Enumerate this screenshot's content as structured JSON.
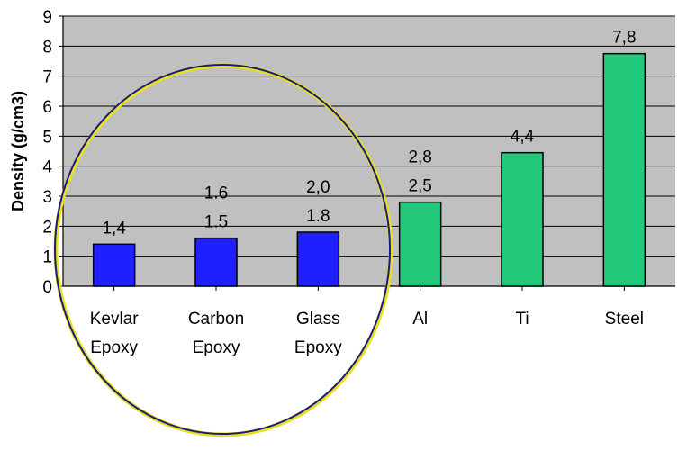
{
  "chart_data": {
    "type": "bar",
    "ylabel": "Density (g/cm3)",
    "ylim": [
      0,
      9
    ],
    "yticks": [
      "0",
      "1",
      "2",
      "3",
      "4",
      "5",
      "6",
      "7",
      "8",
      "9"
    ],
    "grid": true,
    "categories": [
      [
        "Kevlar",
        "Epoxy"
      ],
      [
        "Carbon",
        "Epoxy"
      ],
      [
        "Glass",
        "Epoxy"
      ],
      [
        "Al"
      ],
      [
        "Ti"
      ],
      [
        "Steel"
      ]
    ],
    "values": [
      1.4,
      1.6,
      1.8,
      2.8,
      4.45,
      7.75
    ],
    "data_labels": [
      [
        "1,4"
      ],
      [
        "1.6",
        "1.5"
      ],
      [
        "2,0",
        "1.8"
      ],
      [
        "2,8",
        "2,5"
      ],
      [
        "4,4"
      ],
      [
        "7,8"
      ]
    ],
    "bar_colors": [
      "#1f1fff",
      "#1f1fff",
      "#1f1fff",
      "#22c97a",
      "#22c97a",
      "#22c97a"
    ],
    "plot_background": "#c0c0c0",
    "annotation": "circle highlighting composite materials"
  }
}
